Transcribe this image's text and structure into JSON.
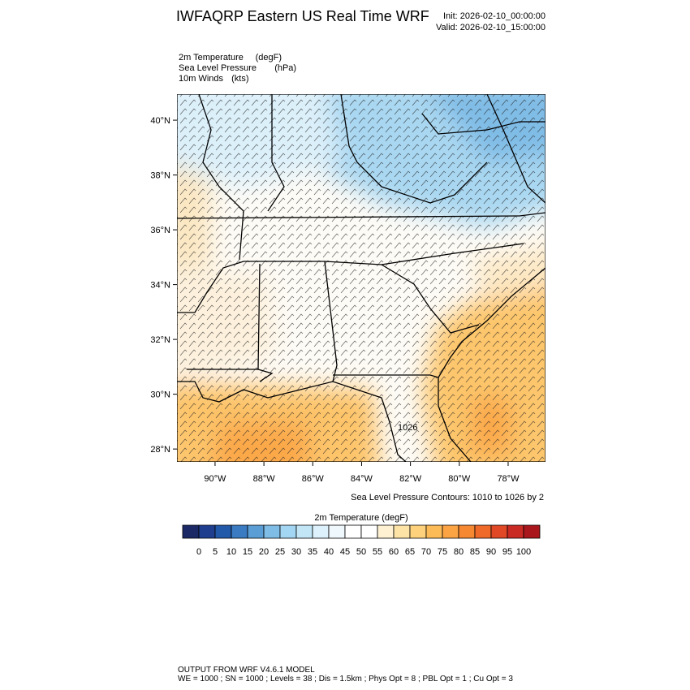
{
  "header": {
    "title": "IWFAQRP Eastern US Real Time WRF",
    "init": "Init: 2026-02-10_00:00:00",
    "valid": "Valid: 2026-02-10_15:00:00"
  },
  "fields": [
    {
      "name": "2m Temperature",
      "unit": "(degF)"
    },
    {
      "name": "Sea Level Pressure",
      "unit": "(hPa)"
    },
    {
      "name": "10m Winds",
      "unit": "(kts)"
    }
  ],
  "map": {
    "lon_range": [
      -91.56,
      -76.47
    ],
    "lat_range": [
      27.53,
      40.95
    ],
    "lat_ticks": [
      {
        "value": 28,
        "label": "28°N"
      },
      {
        "value": 30,
        "label": "30°N"
      },
      {
        "value": 32,
        "label": "32°N"
      },
      {
        "value": 34,
        "label": "34°N"
      },
      {
        "value": 36,
        "label": "36°N"
      },
      {
        "value": 38,
        "label": "38°N"
      },
      {
        "value": 40,
        "label": "40°N"
      }
    ],
    "lon_ticks": [
      {
        "value": -90,
        "label": "90°W"
      },
      {
        "value": -88,
        "label": "88°W"
      },
      {
        "value": -86,
        "label": "86°W"
      },
      {
        "value": -84,
        "label": "84°W"
      },
      {
        "value": -82,
        "label": "82°W"
      },
      {
        "value": -80,
        "label": "80°W"
      },
      {
        "value": -78,
        "label": "78°W"
      }
    ],
    "contour_label": "1026",
    "contour_note": "Sea Level Pressure Contours: 1010 to 1026 by 2"
  },
  "colorbar": {
    "title": "2m Temperature  (degF)",
    "levels": [
      0,
      5,
      10,
      15,
      20,
      25,
      30,
      35,
      40,
      45,
      50,
      55,
      60,
      65,
      70,
      75,
      80,
      85,
      90,
      95,
      100
    ],
    "colors": [
      "#1b2a66",
      "#1f3f8e",
      "#2359a9",
      "#3a7bc2",
      "#5a9ed5",
      "#7fbce6",
      "#a3d6f3",
      "#c3e6f7",
      "#dcf1fb",
      "#eff8fd",
      "#ffffff",
      "#ffffff",
      "#fff1d2",
      "#fee3a6",
      "#fed27c",
      "#fdbb57",
      "#fca343",
      "#f78832",
      "#ef6a29",
      "#e04826",
      "#c92a23",
      "#a9171c"
    ]
  },
  "footer": {
    "line1": "OUTPUT FROM WRF V4.6.1 MODEL",
    "line2": "WE = 1000 ; SN = 1000 ; Levels = 38 ; Dis = 1.5km ; Phys Opt = 8 ; PBL Opt = 1 ; Cu Opt = 3"
  }
}
